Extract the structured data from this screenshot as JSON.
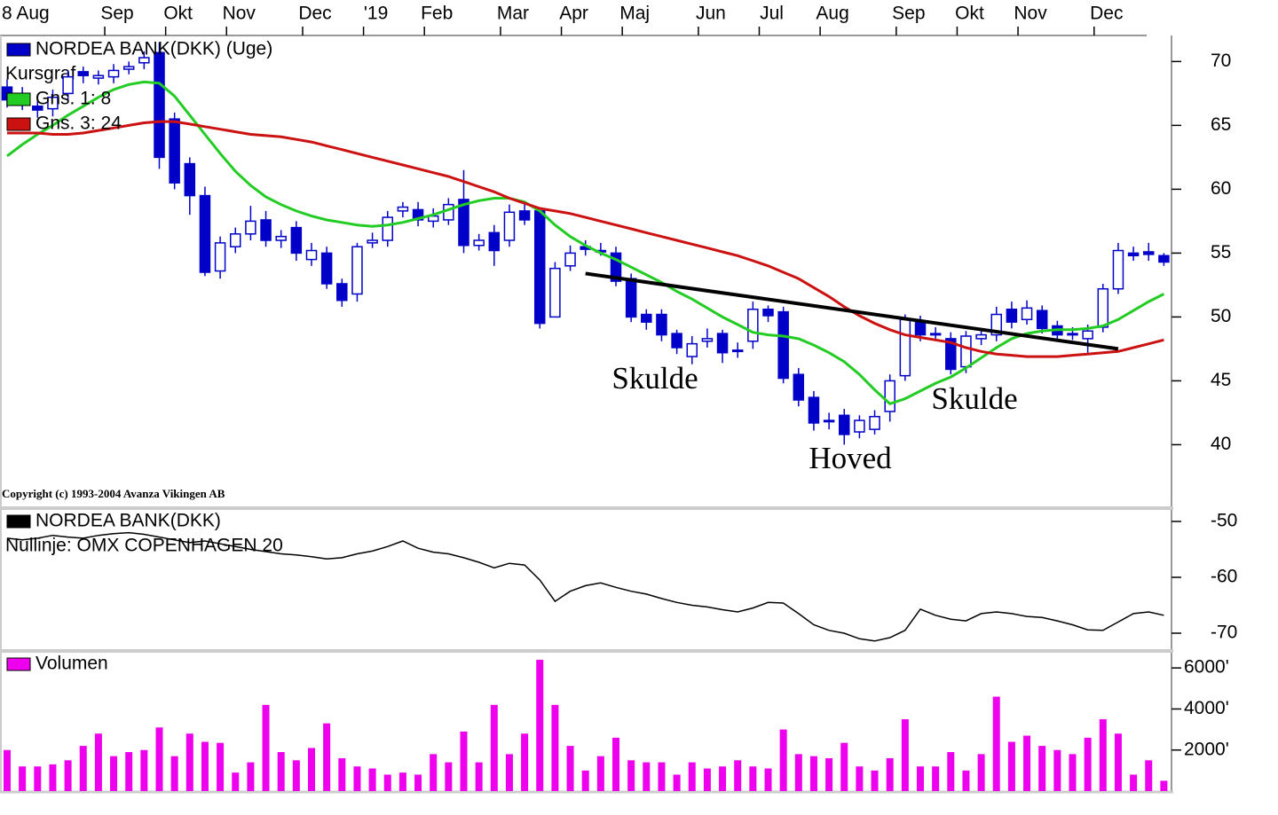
{
  "chart_data": [
    {
      "type": "candlestick",
      "name": "NORDEA BANK(DKK) (Uge)",
      "color": "#0000c8",
      "subtitle": "Kursgraf",
      "copyright": "Copyright (c) 1993-2004 Avanza Vikingen AB",
      "categories": [
        "8 Aug",
        null,
        null,
        null,
        null,
        null,
        null,
        "Sep",
        null,
        null,
        null,
        "Okt",
        null,
        null,
        null,
        "Nov",
        null,
        null,
        null,
        null,
        "Dec",
        null,
        null,
        null,
        "'19",
        null,
        null,
        null,
        "Feb",
        null,
        null,
        null,
        null,
        "Mar",
        null,
        null,
        null,
        "Apr",
        null,
        null,
        null,
        "Maj",
        null,
        null,
        null,
        null,
        "Jun",
        null,
        null,
        null,
        "Jul",
        null,
        null,
        null,
        "Aug",
        null,
        null,
        null,
        null,
        "Sep",
        null,
        null,
        null,
        "Okt",
        null,
        null,
        null,
        "Nov",
        null,
        null,
        null,
        null,
        "Dec",
        null,
        null,
        null,
        null
      ],
      "open": [
        68,
        67.5,
        66.5,
        66.3,
        67.5,
        69.2,
        68.7,
        68.8,
        69.4,
        69.9,
        70.7,
        65.5,
        62,
        59.5,
        53.6,
        55.5,
        56.5,
        57.6,
        56,
        57,
        54.5,
        55,
        52.6,
        51.8,
        55.8,
        56,
        58.3,
        58.4,
        57.5,
        57.6,
        59.2,
        55.6,
        56.6,
        56,
        58.3,
        58.3,
        50,
        54,
        55.5,
        55.1,
        55,
        53,
        50.2,
        50.2,
        48.7,
        46.9,
        48.1,
        48.7,
        47.3,
        48.1,
        50.6,
        50.4,
        45.5,
        43.7,
        41.8,
        42.3,
        41,
        41.2,
        42.6,
        45.4,
        49.6,
        48.6,
        48.3,
        46.1,
        48.3,
        48.6,
        50.6,
        49.8,
        50.5,
        49.3,
        48.6,
        48.3,
        49.2,
        52.2,
        55,
        55.1,
        54.8
      ],
      "high": [
        68.6,
        68,
        67,
        67.8,
        69.3,
        69.6,
        69.3,
        69.8,
        70,
        70.8,
        71.5,
        66,
        62.5,
        60.2,
        56.3,
        57,
        58.7,
        58.3,
        56.8,
        57.5,
        55.8,
        55.5,
        53,
        55.8,
        56.6,
        58.3,
        59,
        59,
        58.5,
        59.3,
        61.5,
        56.5,
        57.2,
        58.8,
        59,
        58.6,
        54.3,
        55.6,
        56,
        55.8,
        55.5,
        53.4,
        50.6,
        50.6,
        49,
        48.5,
        49.1,
        49,
        48,
        51.2,
        50.9,
        50.8,
        46,
        44.2,
        42.5,
        42.8,
        42.3,
        42.7,
        45.5,
        50.2,
        50.1,
        49.2,
        48.8,
        48.9,
        49,
        50.8,
        51.2,
        51.3,
        50.9,
        49.7,
        49.2,
        49.4,
        52.6,
        55.8,
        55.5,
        55.8,
        55
      ],
      "low": [
        66.4,
        66.2,
        65.6,
        65.7,
        67,
        68.3,
        68.2,
        68.3,
        69,
        69.4,
        61.6,
        60,
        58,
        53.2,
        53,
        55,
        56,
        55.5,
        55.4,
        54.4,
        54,
        52.2,
        50.8,
        51.2,
        55.4,
        55.5,
        57.8,
        57.1,
        57,
        57.2,
        55,
        55.2,
        54,
        55.5,
        57.2,
        49.1,
        50,
        53.6,
        54.8,
        54.8,
        52.4,
        49.6,
        49,
        48.1,
        47.1,
        46.3,
        47.6,
        46.4,
        46.8,
        47.5,
        49.6,
        44.8,
        43,
        41.1,
        41.2,
        40,
        40.5,
        40.8,
        41.8,
        45,
        48.1,
        48.2,
        45.5,
        45.6,
        47.8,
        48.1,
        49.1,
        49.4,
        48.7,
        48.1,
        48.2,
        47.2,
        48.8,
        51.8,
        54.4,
        54.4,
        54
      ],
      "close": [
        67,
        66.8,
        66.2,
        67.2,
        68.8,
        68.9,
        68.9,
        69.3,
        69.6,
        70.3,
        62.5,
        60.5,
        59.5,
        53.5,
        55.8,
        56.5,
        57.5,
        56,
        56.3,
        55,
        55.2,
        52.6,
        51.3,
        55.5,
        56,
        57.8,
        58.6,
        57.6,
        57.9,
        58.8,
        55.6,
        56,
        55.2,
        58.2,
        57.6,
        49.5,
        53.8,
        55,
        55.3,
        55.2,
        52.8,
        50,
        49.6,
        48.6,
        47.6,
        47.9,
        48.3,
        47.2,
        47.4,
        50.6,
        50.1,
        45.2,
        43.5,
        41.7,
        41.9,
        40.8,
        41.9,
        42.2,
        45,
        49.8,
        48.6,
        48.7,
        45.9,
        48.5,
        48.6,
        50.2,
        49.6,
        50.7,
        49.1,
        48.6,
        48.7,
        48.9,
        52.2,
        55.2,
        54.8,
        54.9,
        54.3
      ],
      "series": [
        {
          "name": "Gns. 1: 8",
          "color": "#22cc22",
          "values": [
            62.6,
            63.5,
            64.3,
            65,
            65.8,
            66.5,
            67.2,
            67.8,
            68.2,
            68.4,
            68.3,
            67.3,
            65.8,
            64.3,
            62.8,
            61.4,
            60.3,
            59.4,
            58.8,
            58.3,
            57.9,
            57.6,
            57.4,
            57.2,
            57.1,
            57.2,
            57.4,
            57.7,
            58,
            58.4,
            58.8,
            59.1,
            59.3,
            59.3,
            59,
            58.3,
            57.2,
            56.3,
            55.6,
            55,
            54.5,
            53.9,
            53.3,
            52.7,
            52,
            51.4,
            50.7,
            50,
            49.4,
            48.8,
            48.6,
            48.5,
            48.3,
            47.8,
            47.2,
            46.5,
            45.5,
            44.3,
            43.2,
            43.6,
            44.2,
            44.8,
            45.3,
            46,
            46.8,
            47.6,
            48.3,
            48.7,
            48.9,
            49,
            49,
            49.1,
            49.3,
            49.8,
            50.5,
            51.2,
            51.8
          ]
        },
        {
          "name": "Gns. 3: 24",
          "color": "#cc1111",
          "values": [
            64.4,
            64.4,
            64.4,
            64.3,
            64.3,
            64.4,
            64.6,
            64.8,
            65,
            65.2,
            65.3,
            65.3,
            65.1,
            64.9,
            64.7,
            64.5,
            64.3,
            64.2,
            64.1,
            63.9,
            63.7,
            63.4,
            63.1,
            62.8,
            62.5,
            62.2,
            61.9,
            61.6,
            61.3,
            61,
            60.6,
            60.2,
            59.8,
            59.3,
            58.9,
            58.5,
            58.3,
            58.1,
            57.8,
            57.5,
            57.2,
            56.9,
            56.6,
            56.3,
            56,
            55.7,
            55.4,
            55.1,
            54.8,
            54.4,
            54,
            53.5,
            53,
            52.3,
            51.6,
            50.8,
            50.1,
            49.5,
            49,
            48.6,
            48.4,
            48.2,
            48,
            47.6,
            47.3,
            47.1,
            47,
            46.9,
            46.9,
            46.9,
            47,
            47.1,
            47.2,
            47.3,
            47.6,
            47.9,
            48.2
          ]
        }
      ],
      "trendline": {
        "color": "#000000",
        "x": [
          38,
          73
        ],
        "values": [
          53.4,
          47.5
        ]
      },
      "annotations": [
        "Skulde",
        "Hoved",
        "Skulde"
      ],
      "ylim": [
        35.1,
        71.9
      ],
      "yticks": [
        40,
        45,
        50,
        55,
        60,
        65,
        70
      ]
    },
    {
      "type": "line",
      "subtitle": "Nullinje: OMX COPENHAGEN 20",
      "series": [
        {
          "name": "NORDEA BANK(DKK)",
          "color": "#000000",
          "values": [
            -53,
            -53.3,
            -53,
            -52.5,
            -52.8,
            -53,
            -52.5,
            -52.2,
            -52,
            -52.3,
            -52.8,
            -53.3,
            -53.8,
            -53.5,
            -54,
            -54.5,
            -55,
            -55.4,
            -55.8,
            -56,
            -56.3,
            -56.7,
            -56.5,
            -55.8,
            -55.3,
            -54.5,
            -53.5,
            -54.8,
            -55.5,
            -55.8,
            -56.5,
            -57.3,
            -58.3,
            -57.5,
            -57.8,
            -60.5,
            -64.3,
            -62.5,
            -61.5,
            -61,
            -61.8,
            -62.5,
            -63,
            -63.8,
            -64.5,
            -65,
            -65.3,
            -65.8,
            -66.2,
            -65.5,
            -64.5,
            -64.6,
            -66.5,
            -68.5,
            -69.5,
            -70,
            -71,
            -71.4,
            -70.8,
            -69.5,
            -65.7,
            -66.8,
            -67.5,
            -67.8,
            -66.5,
            -66.2,
            -66.5,
            -67,
            -67.2,
            -67.8,
            -68.5,
            -69.4,
            -69.5,
            -68,
            -66.5,
            -66.2,
            -66.8
          ]
        }
      ],
      "ylim": [
        -72.7,
        -48.1
      ],
      "yticks": [
        -50,
        -60,
        -70
      ]
    },
    {
      "type": "bar",
      "series": [
        {
          "name": "Volumen",
          "color": "#ee00ee",
          "values": [
            2000,
            1200,
            1200,
            1300,
            1500,
            2200,
            2800,
            1700,
            1900,
            2000,
            3100,
            1700,
            2800,
            2400,
            2350,
            900,
            1400,
            4200,
            1900,
            1500,
            2100,
            3300,
            1600,
            1200,
            1100,
            800,
            900,
            800,
            1800,
            1400,
            2900,
            1400,
            4200,
            1800,
            2800,
            6400,
            4200,
            2200,
            1000,
            1700,
            2600,
            1500,
            1400,
            1400,
            800,
            1400,
            1100,
            1200,
            1500,
            1200,
            1100,
            3000,
            1800,
            1700,
            1600,
            2350,
            1200,
            1000,
            1600,
            3500,
            1200,
            1200,
            1900,
            1000,
            1800,
            4600,
            2400,
            2700,
            2200,
            2000,
            1800,
            2600,
            3500,
            2800,
            800,
            1500,
            500
          ]
        }
      ],
      "ylim": [
        0,
        6700
      ],
      "yticks": [
        {
          "value": 2000,
          "label": "2000'"
        },
        {
          "value": 4000,
          "label": "4000'"
        },
        {
          "value": 6000,
          "label": "6000'"
        }
      ]
    }
  ]
}
